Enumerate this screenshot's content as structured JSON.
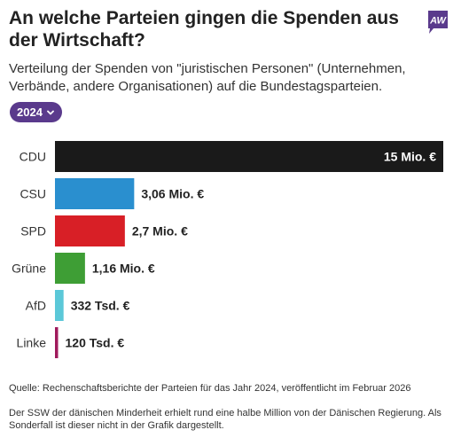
{
  "title": "An welche Parteien gingen die Spenden aus der Wirtschaft?",
  "logo_text": "AW",
  "subtitle": "Verteilung der Spenden von \"juristischen Personen\" (Unternehmen, Verbände, andere Organisationen) auf die Bundestagsparteien.",
  "year_selector": {
    "value": "2024",
    "icon": "chevron-down-icon"
  },
  "source": "Quelle: Rechenschaftsberichte der Parteien für das Jahr 2024, veröffentlicht im Februar 2026",
  "note": "Der SSW der dänischen Minderheit erhielt rund eine halbe Million von der Dänischen Regierung. Als Sonderfall ist dieser nicht in der Grafik dargestellt.",
  "colors": {
    "accent": "#5a3a8c"
  },
  "chart_data": {
    "type": "bar",
    "orientation": "horizontal",
    "categories": [
      "CDU",
      "CSU",
      "SPD",
      "Grüne",
      "AfD",
      "Linke"
    ],
    "values": [
      15000000,
      3060000,
      2700000,
      1160000,
      332000,
      120000
    ],
    "value_labels": [
      "15 Mio. €",
      "3,06 Mio. €",
      "2,7 Mio. €",
      "1,16 Mio. €",
      "332 Tsd. €",
      "120 Tsd. €"
    ],
    "colors": [
      "#1a1a1a",
      "#2a8fcf",
      "#d81f26",
      "#3e9e35",
      "#5bc8d8",
      "#a01a5c"
    ],
    "xlim": [
      0,
      15000000
    ],
    "grid": false,
    "legend": "none"
  }
}
